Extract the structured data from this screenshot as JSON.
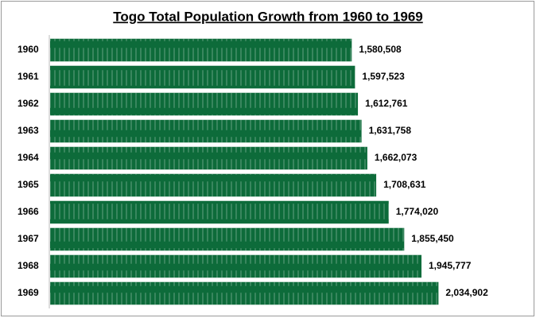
{
  "chart_data": {
    "type": "bar",
    "orientation": "horizontal",
    "title": "Togo Total Population Growth from 1960 to 1969",
    "categories": [
      "1960",
      "1961",
      "1962",
      "1963",
      "1964",
      "1965",
      "1966",
      "1967",
      "1968",
      "1969"
    ],
    "values": [
      1580508,
      1597523,
      1612761,
      1631758,
      1662073,
      1708631,
      1774020,
      1855450,
      1945777,
      2034902
    ],
    "value_labels": [
      "1,580,508",
      "1,597,523",
      "1,612,761",
      "1,631,758",
      "1,662,073",
      "1,708,631",
      "1,774,020",
      "1,855,450",
      "1,945,777",
      "2,034,902"
    ],
    "color": "#0d6b3a",
    "xlim": [
      0,
      2500000
    ]
  }
}
